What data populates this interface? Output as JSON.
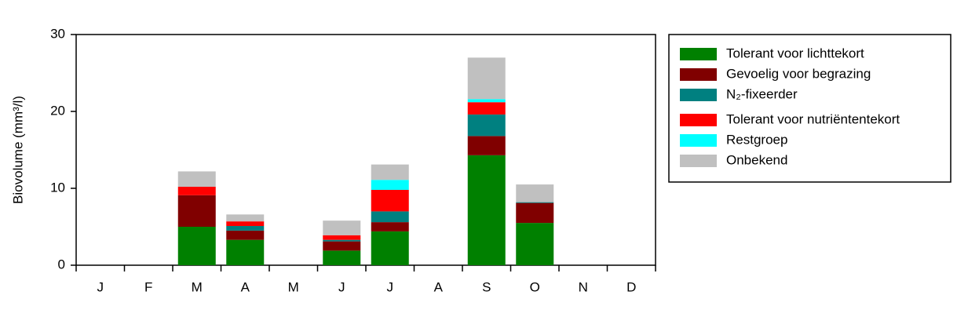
{
  "chart_data": {
    "type": "stacked-bar",
    "y_label": "Biovolume (mm³/l)",
    "categories": [
      "J",
      "F",
      "M",
      "A",
      "M",
      "J",
      "J",
      "A",
      "S",
      "O",
      "N",
      "D"
    ],
    "ylim": [
      0,
      30
    ],
    "yticks": [
      0,
      10,
      20,
      30
    ],
    "series": [
      {
        "name": "Tolerant voor lichttekort",
        "color": "#008000",
        "values": [
          0,
          0,
          5.0,
          3.3,
          0,
          1.9,
          4.4,
          0,
          14.3,
          5.5,
          0,
          0
        ]
      },
      {
        "name": "Gevoelig voor begrazing",
        "color": "#800000",
        "values": [
          0,
          0,
          4.1,
          1.2,
          0,
          1.2,
          1.2,
          0,
          2.5,
          2.6,
          0,
          0
        ]
      },
      {
        "name": "N₂-fixeerder",
        "color": "#008080",
        "values": [
          0,
          0,
          0,
          0.6,
          0,
          0.2,
          1.4,
          0,
          2.8,
          0.1,
          0,
          0
        ]
      },
      {
        "name": "Tolerant voor nutriëntentekort",
        "color": "#ff0000",
        "values": [
          0,
          0,
          1.1,
          0.6,
          0,
          0.6,
          2.8,
          0,
          1.6,
          0,
          0,
          0
        ]
      },
      {
        "name": "Restgroep",
        "color": "#00ffff",
        "values": [
          0,
          0,
          0,
          0,
          0,
          0,
          1.3,
          0,
          0.4,
          0,
          0,
          0
        ]
      },
      {
        "name": "Onbekend",
        "color": "#c0c0c0",
        "values": [
          0,
          0,
          2.0,
          0.9,
          0,
          1.9,
          2.0,
          0,
          5.4,
          2.3,
          0,
          0
        ]
      }
    ]
  }
}
